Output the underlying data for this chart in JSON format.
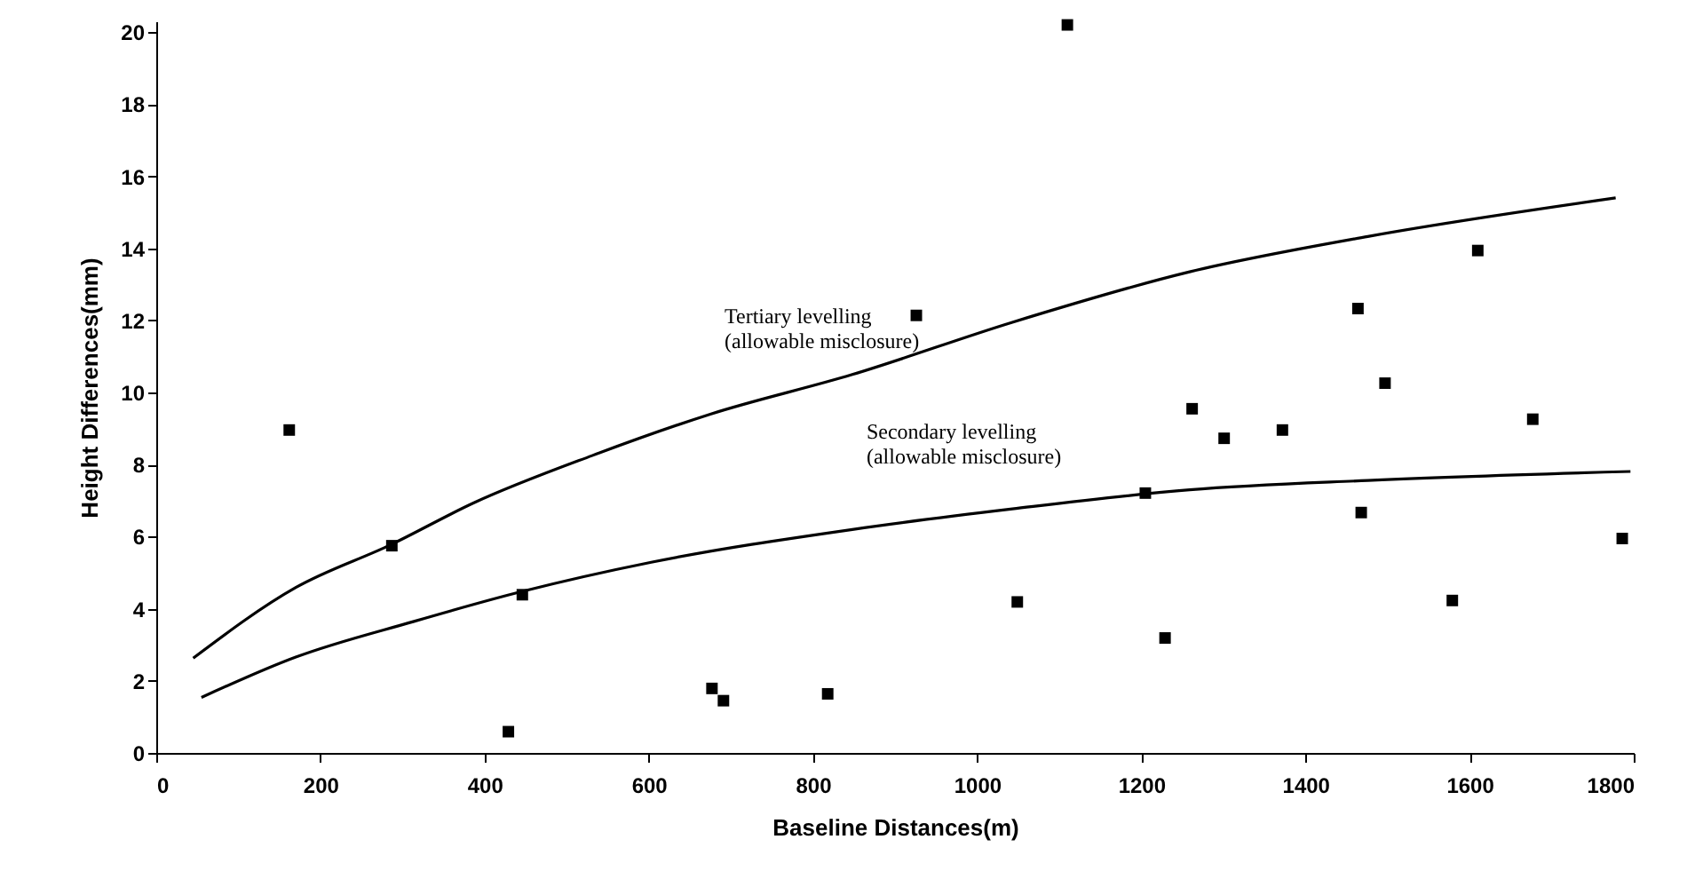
{
  "chart_data": {
    "type": "scatter",
    "xlabel": "Baseline Distances(m)",
    "ylabel": "Height Differences(mm)",
    "xlim": [
      0,
      1800
    ],
    "xticks": [
      0,
      200,
      400,
      600,
      800,
      1000,
      1200,
      1400,
      1600,
      1800
    ],
    "ylim": [
      0,
      20.3
    ],
    "yticks": [
      0,
      2,
      4,
      6,
      8,
      10,
      12,
      14,
      16,
      18,
      20
    ],
    "grid": false,
    "marker": "square",
    "series": [
      {
        "color": "#000000",
        "x": [
          162,
          287,
          446,
          429,
          677,
          691,
          818,
          926,
          1049,
          1110,
          1205,
          1229,
          1262,
          1301,
          1372,
          1464,
          1468,
          1497,
          1579,
          1610,
          1677,
          1786
        ],
        "values": [
          8.96,
          5.75,
          4.39,
          0.59,
          1.79,
          1.45,
          1.64,
          12.14,
          4.19,
          20.2,
          7.21,
          3.19,
          9.55,
          8.73,
          8.96,
          12.33,
          6.67,
          10.26,
          4.23,
          13.94,
          9.26,
          5.95
        ]
      },
      {
        "type": "line",
        "name": "Tertiary levelling\n(allowable misclosure)",
        "marker": "none",
        "color": "#000000",
        "line_style": "solid",
        "x": [
          45,
          170,
          286,
          387,
          531,
          675,
          848,
          1043,
          1259,
          1476,
          1778
        ],
        "values": [
          2.63,
          4.59,
          5.78,
          6.94,
          8.25,
          9.4,
          10.5,
          11.95,
          13.35,
          14.33,
          15.4
        ]
      },
      {
        "type": "line",
        "name": "Secondary levelling\n(allowable misclosure)",
        "marker": "none",
        "color": "#000000",
        "line_style": "solid",
        "x": [
          55,
          170,
          314,
          444,
          603,
          848,
          1043,
          1259,
          1476,
          1796
        ],
        "values": [
          1.54,
          2.66,
          3.65,
          4.47,
          5.29,
          6.2,
          6.77,
          7.3,
          7.56,
          7.81
        ]
      }
    ]
  }
}
